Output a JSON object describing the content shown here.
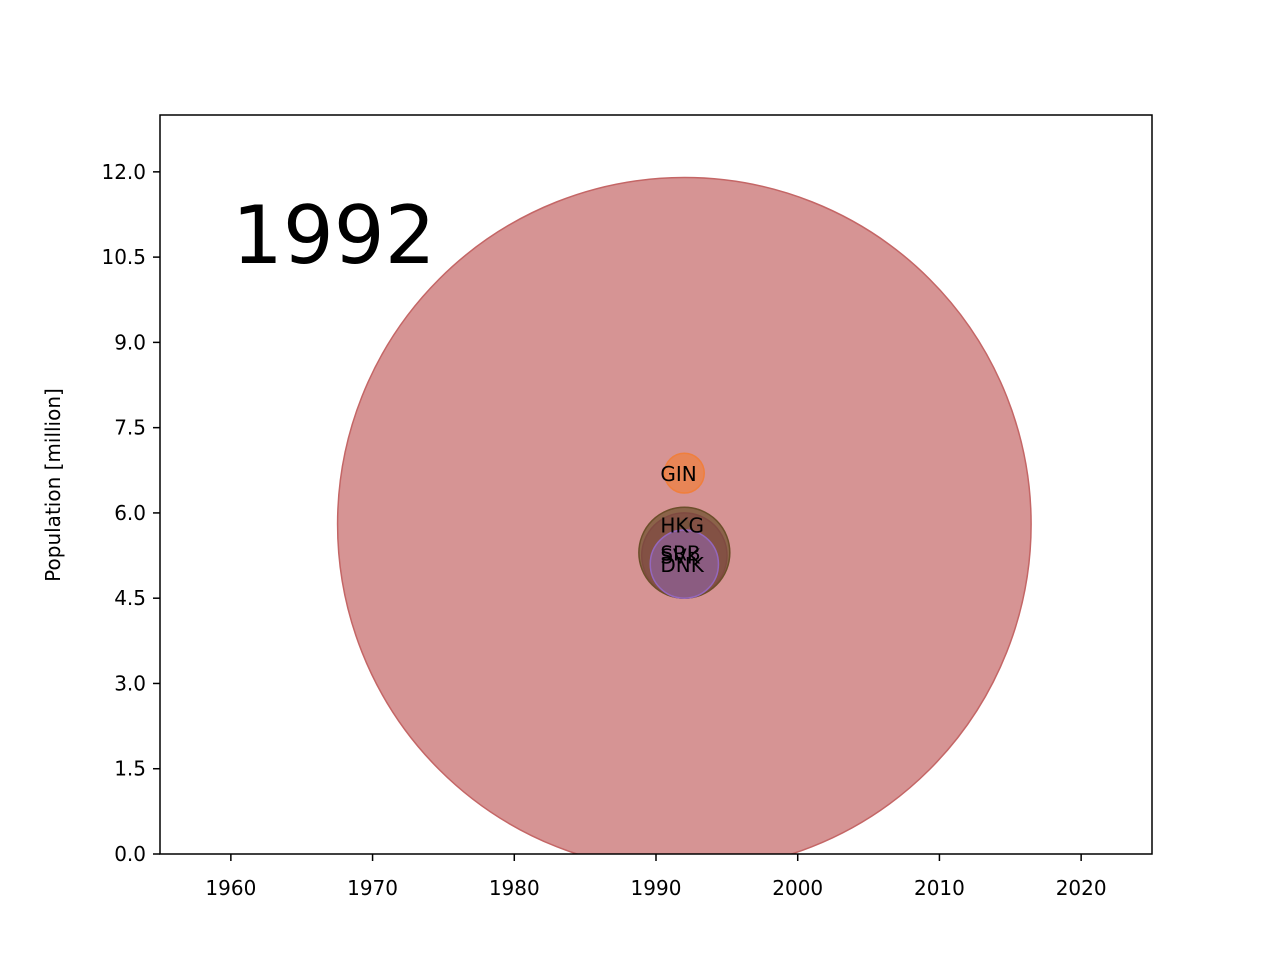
{
  "chart_data": {
    "type": "scatter",
    "title": "",
    "annotation": "1992",
    "xlabel": "",
    "ylabel": "Population [million]",
    "xlim": [
      1955,
      2025
    ],
    "ylim": [
      0,
      13
    ],
    "xticks": [
      1960,
      1970,
      1980,
      1990,
      2000,
      2010,
      2020
    ],
    "yticks": [
      0,
      1.5,
      3,
      4.5,
      6,
      7.5,
      9,
      10.5,
      12
    ],
    "ytick_labels": [
      "0.0",
      "1.5",
      "3.0",
      "4.5",
      "6.0",
      "7.5",
      "9.0",
      "10.5",
      "12.0"
    ],
    "xtick_labels": [
      "1960",
      "1970",
      "1980",
      "1990",
      "2000",
      "2010",
      "2020"
    ],
    "grid": false,
    "points": [
      {
        "label": "",
        "x": 1992,
        "y": 5.8,
        "radius": 6.1,
        "color": "#c46666",
        "alpha": 0.7
      },
      {
        "label": "GIN",
        "x": 1992,
        "y": 6.7,
        "radius": 0.35,
        "color": "#f07f3c",
        "alpha": 0.7
      },
      {
        "label": "HKG",
        "x": 1992,
        "y": 5.8,
        "radius": 0.08,
        "color": "#2ca02c",
        "alpha": 0.7
      },
      {
        "label": "SVK",
        "x": 1992,
        "y": 5.25,
        "radius": 0.75,
        "color": "#b0407a",
        "alpha": 0.7
      },
      {
        "label": "SRB",
        "x": 1992,
        "y": 5.3,
        "radius": 0.8,
        "color": "#6b4e2a",
        "alpha": 0.7
      },
      {
        "label": "DNK",
        "x": 1992,
        "y": 5.1,
        "radius": 0.6,
        "color": "#9467bd",
        "alpha": 0.5
      }
    ]
  }
}
